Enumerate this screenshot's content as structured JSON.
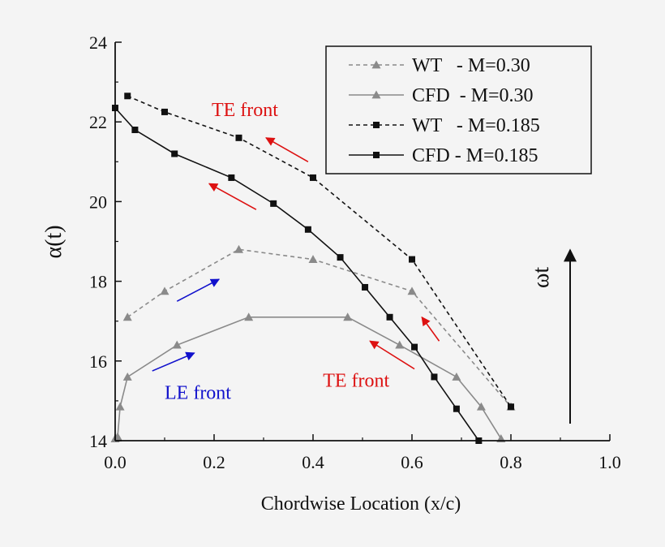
{
  "chart_data": {
    "type": "line",
    "xlabel": "Chordwise Location (x/c)",
    "ylabel": "α(t)",
    "xlim": [
      0.0,
      1.0
    ],
    "ylim": [
      14,
      24
    ],
    "xticks": [
      "0.0",
      "0.2",
      "0.4",
      "0.6",
      "0.8",
      "1.0"
    ],
    "yticks": [
      "14",
      "16",
      "18",
      "20",
      "22",
      "24"
    ],
    "legend_position": "top-right",
    "series": [
      {
        "name": "WT   - M=0.30",
        "style": "dashed",
        "marker": "triangle",
        "color": "#8a8a8a",
        "x": [
          0.025,
          0.1,
          0.25,
          0.4,
          0.6,
          0.8
        ],
        "y": [
          17.1,
          17.75,
          18.8,
          18.55,
          17.75,
          14.85
        ]
      },
      {
        "name": "CFD  - M=0.30",
        "style": "solid",
        "marker": "triangle",
        "color": "#8a8a8a",
        "x": [
          0.0,
          0.005,
          0.01,
          0.025,
          0.125,
          0.27,
          0.47,
          0.575,
          0.69,
          0.74,
          0.78
        ],
        "y": [
          14.05,
          14.1,
          14.85,
          15.6,
          16.4,
          17.1,
          17.1,
          16.4,
          15.6,
          14.85,
          14.05
        ]
      },
      {
        "name": "WT   - M=0.185",
        "style": "dashed",
        "marker": "square",
        "color": "#111111",
        "x": [
          0.025,
          0.1,
          0.25,
          0.4,
          0.6,
          0.8
        ],
        "y": [
          22.65,
          22.25,
          21.6,
          20.6,
          18.55,
          14.85
        ]
      },
      {
        "name": "CFD - M=0.185",
        "style": "solid",
        "marker": "square",
        "color": "#111111",
        "x": [
          0.0,
          0.04,
          0.12,
          0.235,
          0.32,
          0.39,
          0.455,
          0.505,
          0.555,
          0.605,
          0.645,
          0.69,
          0.735
        ],
        "y": [
          22.35,
          21.8,
          21.2,
          20.6,
          19.95,
          19.3,
          18.6,
          17.85,
          17.1,
          16.35,
          15.6,
          14.8,
          14.0
        ]
      }
    ],
    "annotations": [
      {
        "text": "TE front",
        "color": "#dd1111",
        "x": 0.195,
        "y": 22.15
      },
      {
        "text": "TE front",
        "color": "#dd1111",
        "x": 0.42,
        "y": 15.35
      },
      {
        "text": "LE front",
        "color": "#1111cc",
        "x": 0.1,
        "y": 15.05
      }
    ],
    "arrows": [
      {
        "color": "#dd1111",
        "from": [
          0.39,
          21.0
        ],
        "to": [
          0.305,
          21.6
        ]
      },
      {
        "color": "#dd1111",
        "from": [
          0.285,
          19.8
        ],
        "to": [
          0.19,
          20.45
        ]
      },
      {
        "color": "#dd1111",
        "from": [
          0.655,
          16.5
        ],
        "to": [
          0.62,
          17.1
        ]
      },
      {
        "color": "#dd1111",
        "from": [
          0.605,
          15.8
        ],
        "to": [
          0.515,
          16.5
        ]
      },
      {
        "color": "#1111cc",
        "from": [
          0.125,
          17.5
        ],
        "to": [
          0.21,
          18.05
        ]
      },
      {
        "color": "#1111cc",
        "from": [
          0.075,
          15.75
        ],
        "to": [
          0.16,
          16.2
        ]
      }
    ],
    "omega_label": "ωt"
  }
}
